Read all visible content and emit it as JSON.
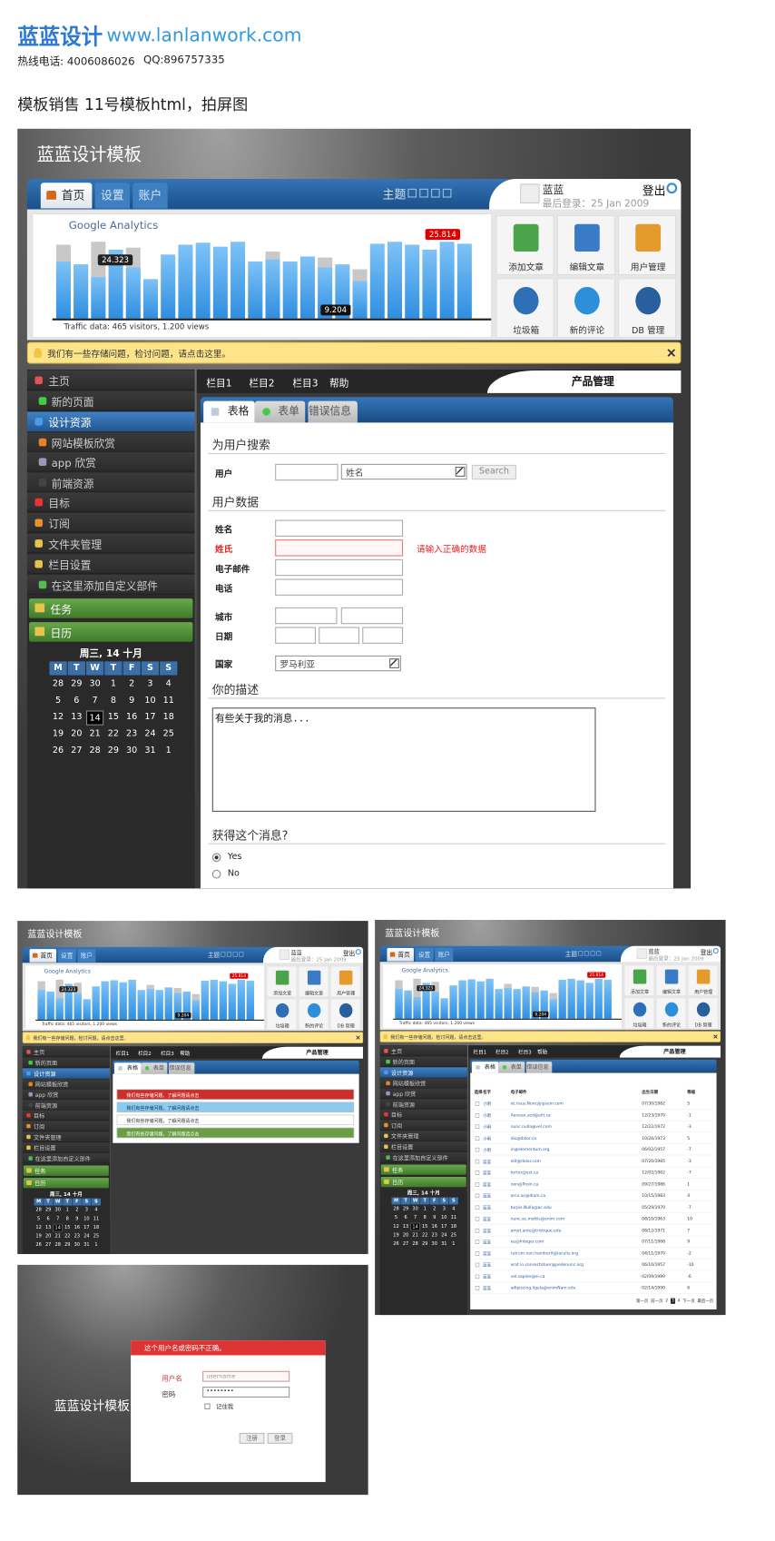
{
  "header": {
    "brand": "蓝蓝设计",
    "url": "www.lanlanwork.com",
    "hotline": "热线电话: 4006086026",
    "qq": "QQ:896757335"
  },
  "caption": "模板销售   11号模板html，拍屏图",
  "main": {
    "title": "蓝蓝设计模板",
    "tabs": [
      "首页",
      "设置",
      "账户"
    ],
    "theme": "主题",
    "user": {
      "name": "蓝蓝",
      "last_login": "最后登录：25 Jan 2009",
      "logout": "登出"
    },
    "analytics": {
      "logo": "Google Analytics",
      "callouts": [
        "24.323",
        "25.814",
        "9.204"
      ],
      "traffic": "Traffic data: 465 visitors, 1.200 views",
      "bars": {
        "blue": [
          58,
          55,
          42,
          70,
          52,
          40,
          65,
          75,
          77,
          73,
          78,
          58,
          60,
          58,
          63,
          52,
          55,
          38,
          76,
          78,
          75,
          70,
          78,
          76
        ],
        "grey": [
          75,
          55,
          78,
          null,
          72,
          null,
          null,
          null,
          null,
          null,
          null,
          null,
          68,
          null,
          null,
          62,
          null,
          50,
          null,
          null,
          null,
          null,
          null,
          null
        ]
      }
    },
    "shortcuts": [
      "添加文章",
      "编辑文章",
      "用户管理",
      "垃圾箱",
      "新的评论",
      "DB 管理"
    ],
    "notice": "我们有一些存储问题，检讨问题，请点击这里。",
    "sidebar": [
      "主页",
      "新的页面",
      "设计资源",
      "网站模板欣赏",
      "app 欣赏",
      "前端资源",
      "目标",
      "订阅",
      "文件夹管理",
      "栏目设置",
      "在这里添加自定义部件"
    ],
    "sections": [
      "任务",
      "日历"
    ],
    "calendar": {
      "title": "周三, 14 十月",
      "weekdays": [
        "M",
        "T",
        "W",
        "T",
        "F",
        "S",
        "S"
      ],
      "days": [
        [
          28,
          29,
          30,
          1,
          2,
          3,
          4
        ],
        [
          5,
          6,
          7,
          8,
          9,
          10,
          11
        ],
        [
          12,
          13,
          14,
          15,
          16,
          17,
          18
        ],
        [
          19,
          20,
          21,
          22,
          23,
          24,
          25
        ],
        [
          26,
          27,
          28,
          29,
          30,
          31,
          1
        ]
      ]
    },
    "menu": [
      "栏目1",
      "栏目2",
      "栏目3",
      "帮助"
    ],
    "page_title": "产品管理",
    "content_tabs": [
      "表格",
      "表单",
      "错误信息"
    ],
    "search": {
      "heading": "为用户搜索",
      "label": "用户",
      "select": "姓名",
      "button": "Search"
    },
    "form": {
      "heading": "用户数据",
      "fields": [
        "姓名",
        "姓氏",
        "电子邮件",
        "电话",
        "城市",
        "日期",
        "国家"
      ],
      "error": "请输入正确的数据",
      "country": "罗马利亚"
    },
    "description": {
      "heading": "你的描述",
      "text": "有些关于我的消息..."
    },
    "question": {
      "heading": "获得这个消息?",
      "options": [
        "Yes",
        "No"
      ]
    }
  },
  "thumb_alerts": {
    "messages": [
      "我们有些存储问题，了解问题请点击",
      "我们有些存储问题，了解问题请点击",
      "我们有些存储问题，了解问题请点击",
      "我们有些存储问题，了解问题请点击"
    ]
  },
  "thumb_table": {
    "headers": [
      "选择",
      "名字",
      "电子邮件",
      "出生日期",
      "等级"
    ],
    "rows": [
      [
        "小明",
        "et.risus.Nunc@ipsum.com",
        "07/30/1982",
        "5"
      ],
      [
        "小明",
        "Aenean.sed@elit.ca",
        "12/23/1970",
        "-1"
      ],
      [
        "小明",
        "nunc.nulla@vel.com",
        "12/22/1972",
        "-3"
      ],
      [
        "小明",
        "dis@dolor.ca",
        "10/26/1973",
        "5"
      ],
      [
        "小明",
        "in@elementum.org",
        "06/02/1957",
        "-7"
      ],
      [
        "蓝蓝",
        "elit@dolor.com",
        "07/20/1985",
        "-3"
      ],
      [
        "蓝蓝",
        "tortor@est.ca",
        "12/02/1962",
        "-7"
      ],
      [
        "蓝蓝",
        "non@Proin.ca",
        "09/27/1986",
        "1"
      ],
      [
        "蓝蓝",
        "arcu.ac@diam.ca",
        "10/15/1983",
        "4"
      ],
      [
        "蓝蓝",
        "turpis.Nulla@ac.edu",
        "05/29/1970",
        "-7"
      ],
      [
        "蓝蓝",
        "nunc.ac.mattis@enim.com",
        "08/10/1963",
        "10"
      ],
      [
        "蓝蓝",
        "amet.ante@tristique.edu",
        "08/12/1971",
        "7"
      ],
      [
        "蓝蓝",
        "eu@Integer.com",
        "07/11/1968",
        "9"
      ],
      [
        "蓝蓝",
        "rutrum.non.hendrerit@iaculis.org",
        "04/11/1970",
        "-2"
      ],
      [
        "蓝蓝",
        "erat.in.consectetuer@pedenunc.org",
        "06/10/1957",
        "-10"
      ],
      [
        "蓝蓝",
        "vel.sapien@ei.ca",
        "02/09/1989",
        "-6"
      ],
      [
        "蓝蓝",
        "adipiscing.ligula@enimNam.edu",
        "02/14/1990",
        "6"
      ]
    ],
    "pagination": [
      "第一页",
      "前一页",
      "2",
      "3",
      "4",
      "下一页",
      "最后一页"
    ]
  },
  "login": {
    "title": "蓝蓝设计模板",
    "error": "这个用户名或密码不正确。",
    "username_label": "用户名",
    "username_placeholder": "username",
    "password_label": "密码",
    "password_value": "••••••••",
    "remember": "记住我",
    "buttons": [
      "注册",
      "登录"
    ]
  }
}
